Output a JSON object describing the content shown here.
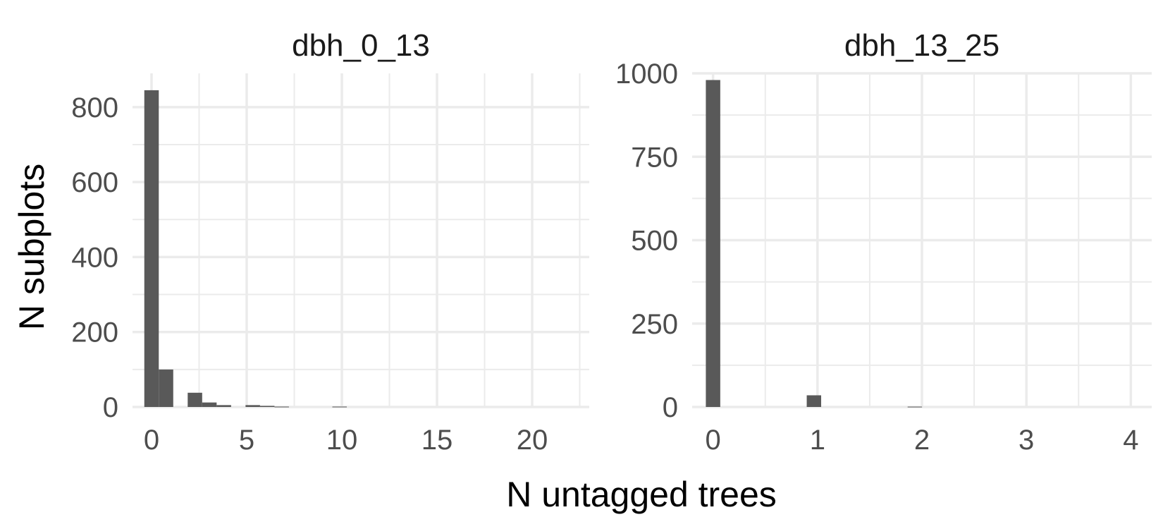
{
  "chart_data": {
    "type": "bar",
    "xlabel": "N untagged trees",
    "ylabel": "N subplots",
    "grid": true,
    "colors": {
      "bar": "#595959",
      "grid": "#ebebeb",
      "text": "#4d4d4d"
    },
    "panels": [
      {
        "title": "dbh_0_13",
        "xlim": [
          -1.0,
          23.0
        ],
        "ylim": [
          0,
          890
        ],
        "xticks": [
          "0",
          "5",
          "10",
          "15",
          "20"
        ],
        "xtick_values": [
          0,
          5,
          10,
          15,
          20
        ],
        "yticks": [
          "0",
          "200",
          "400",
          "600",
          "800"
        ],
        "ytick_values": [
          0,
          200,
          400,
          600,
          800
        ],
        "bin_width": 0.76,
        "bins": [
          {
            "x": 0.0,
            "count": 845
          },
          {
            "x": 0.76,
            "count": 100
          },
          {
            "x": 2.28,
            "count": 38
          },
          {
            "x": 3.04,
            "count": 12
          },
          {
            "x": 3.8,
            "count": 5
          },
          {
            "x": 5.32,
            "count": 5
          },
          {
            "x": 6.08,
            "count": 3
          },
          {
            "x": 6.84,
            "count": 1
          },
          {
            "x": 9.88,
            "count": 1
          }
        ]
      },
      {
        "title": "dbh_13_25",
        "xlim": [
          -0.2,
          4.2
        ],
        "ylim": [
          0,
          1000
        ],
        "xticks": [
          "0",
          "1",
          "2",
          "3",
          "4"
        ],
        "xtick_values": [
          0,
          1,
          2,
          3,
          4
        ],
        "yticks": [
          "0",
          "250",
          "500",
          "750",
          "1000"
        ],
        "ytick_values": [
          0,
          250,
          500,
          750,
          1000
        ],
        "bin_width": 0.138,
        "bins": [
          {
            "x": 0.0,
            "count": 980
          },
          {
            "x": 0.966,
            "count": 35
          },
          {
            "x": 1.932,
            "count": 1
          }
        ]
      }
    ]
  }
}
